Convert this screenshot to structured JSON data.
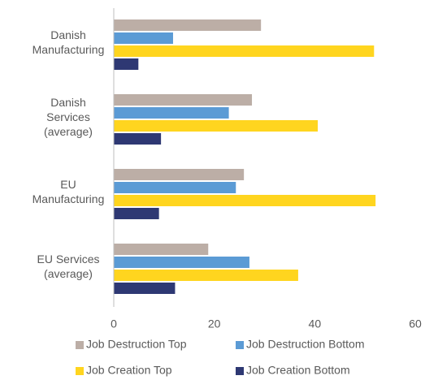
{
  "chart_data": {
    "type": "barh",
    "categories": [
      "Danish\nManufacturing",
      "Danish\nServices\n(average)",
      "EU\nManufacturing",
      "EU Services\n(average)"
    ],
    "series": [
      {
        "name": "Job Destruction Top",
        "color": "#bcaea6",
        "values": [
          29.3,
          27.5,
          25.9,
          18.8
        ]
      },
      {
        "name": "Job Destruction Bottom",
        "color": "#5b9bd5",
        "values": [
          11.8,
          22.9,
          24.3,
          27
        ]
      },
      {
        "name": "Job Creation Top",
        "color": "#ffd51f",
        "values": [
          51.8,
          40.6,
          52.1,
          36.7
        ]
      },
      {
        "name": "Job Creation Bottom",
        "color": "#2e3873",
        "values": [
          4.9,
          9.4,
          9,
          12.2
        ]
      }
    ],
    "xlim": [
      0,
      60
    ],
    "xticks": [
      0,
      20,
      40,
      60
    ],
    "grid": false,
    "legend": "bottom"
  }
}
